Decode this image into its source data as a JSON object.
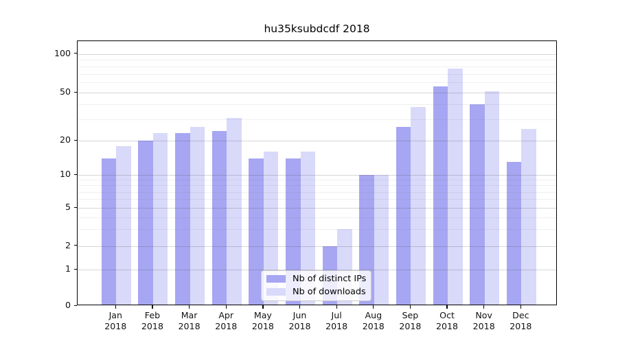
{
  "chart_data": {
    "type": "bar",
    "title": "hu35ksubdcdf 2018",
    "categories": [
      "Jan",
      "Feb",
      "Mar",
      "Apr",
      "May",
      "Jun",
      "Jul",
      "Aug",
      "Sep",
      "Oct",
      "Nov",
      "Dec"
    ],
    "category_year": "2018",
    "series": [
      {
        "name": "Nb of distinct IPs",
        "color": "#a6a6f2",
        "values": [
          14,
          20,
          23,
          24,
          14,
          14,
          2,
          10,
          26,
          56,
          40,
          13
        ]
      },
      {
        "name": "Nb of downloads",
        "color": "#d9d9fa",
        "values": [
          18,
          23,
          26,
          31,
          16,
          16,
          3,
          10,
          38,
          77,
          51,
          25
        ]
      }
    ],
    "yscale": "symlog",
    "ylim": [
      0,
      128
    ],
    "ytick_labels": [
      "100",
      "50",
      "20",
      "10",
      "5",
      "2",
      "1",
      "0"
    ],
    "ytick_values": [
      100,
      50,
      20,
      10,
      5,
      2,
      1,
      0
    ],
    "yminor_gridlines": [
      3,
      4,
      6,
      7,
      8,
      9,
      30,
      40,
      60,
      70,
      80,
      90
    ],
    "ymajor_gridlines": [
      1,
      2,
      5,
      10,
      20,
      50,
      100
    ],
    "grid": "horizontal",
    "legend_position": "bottom-center"
  }
}
